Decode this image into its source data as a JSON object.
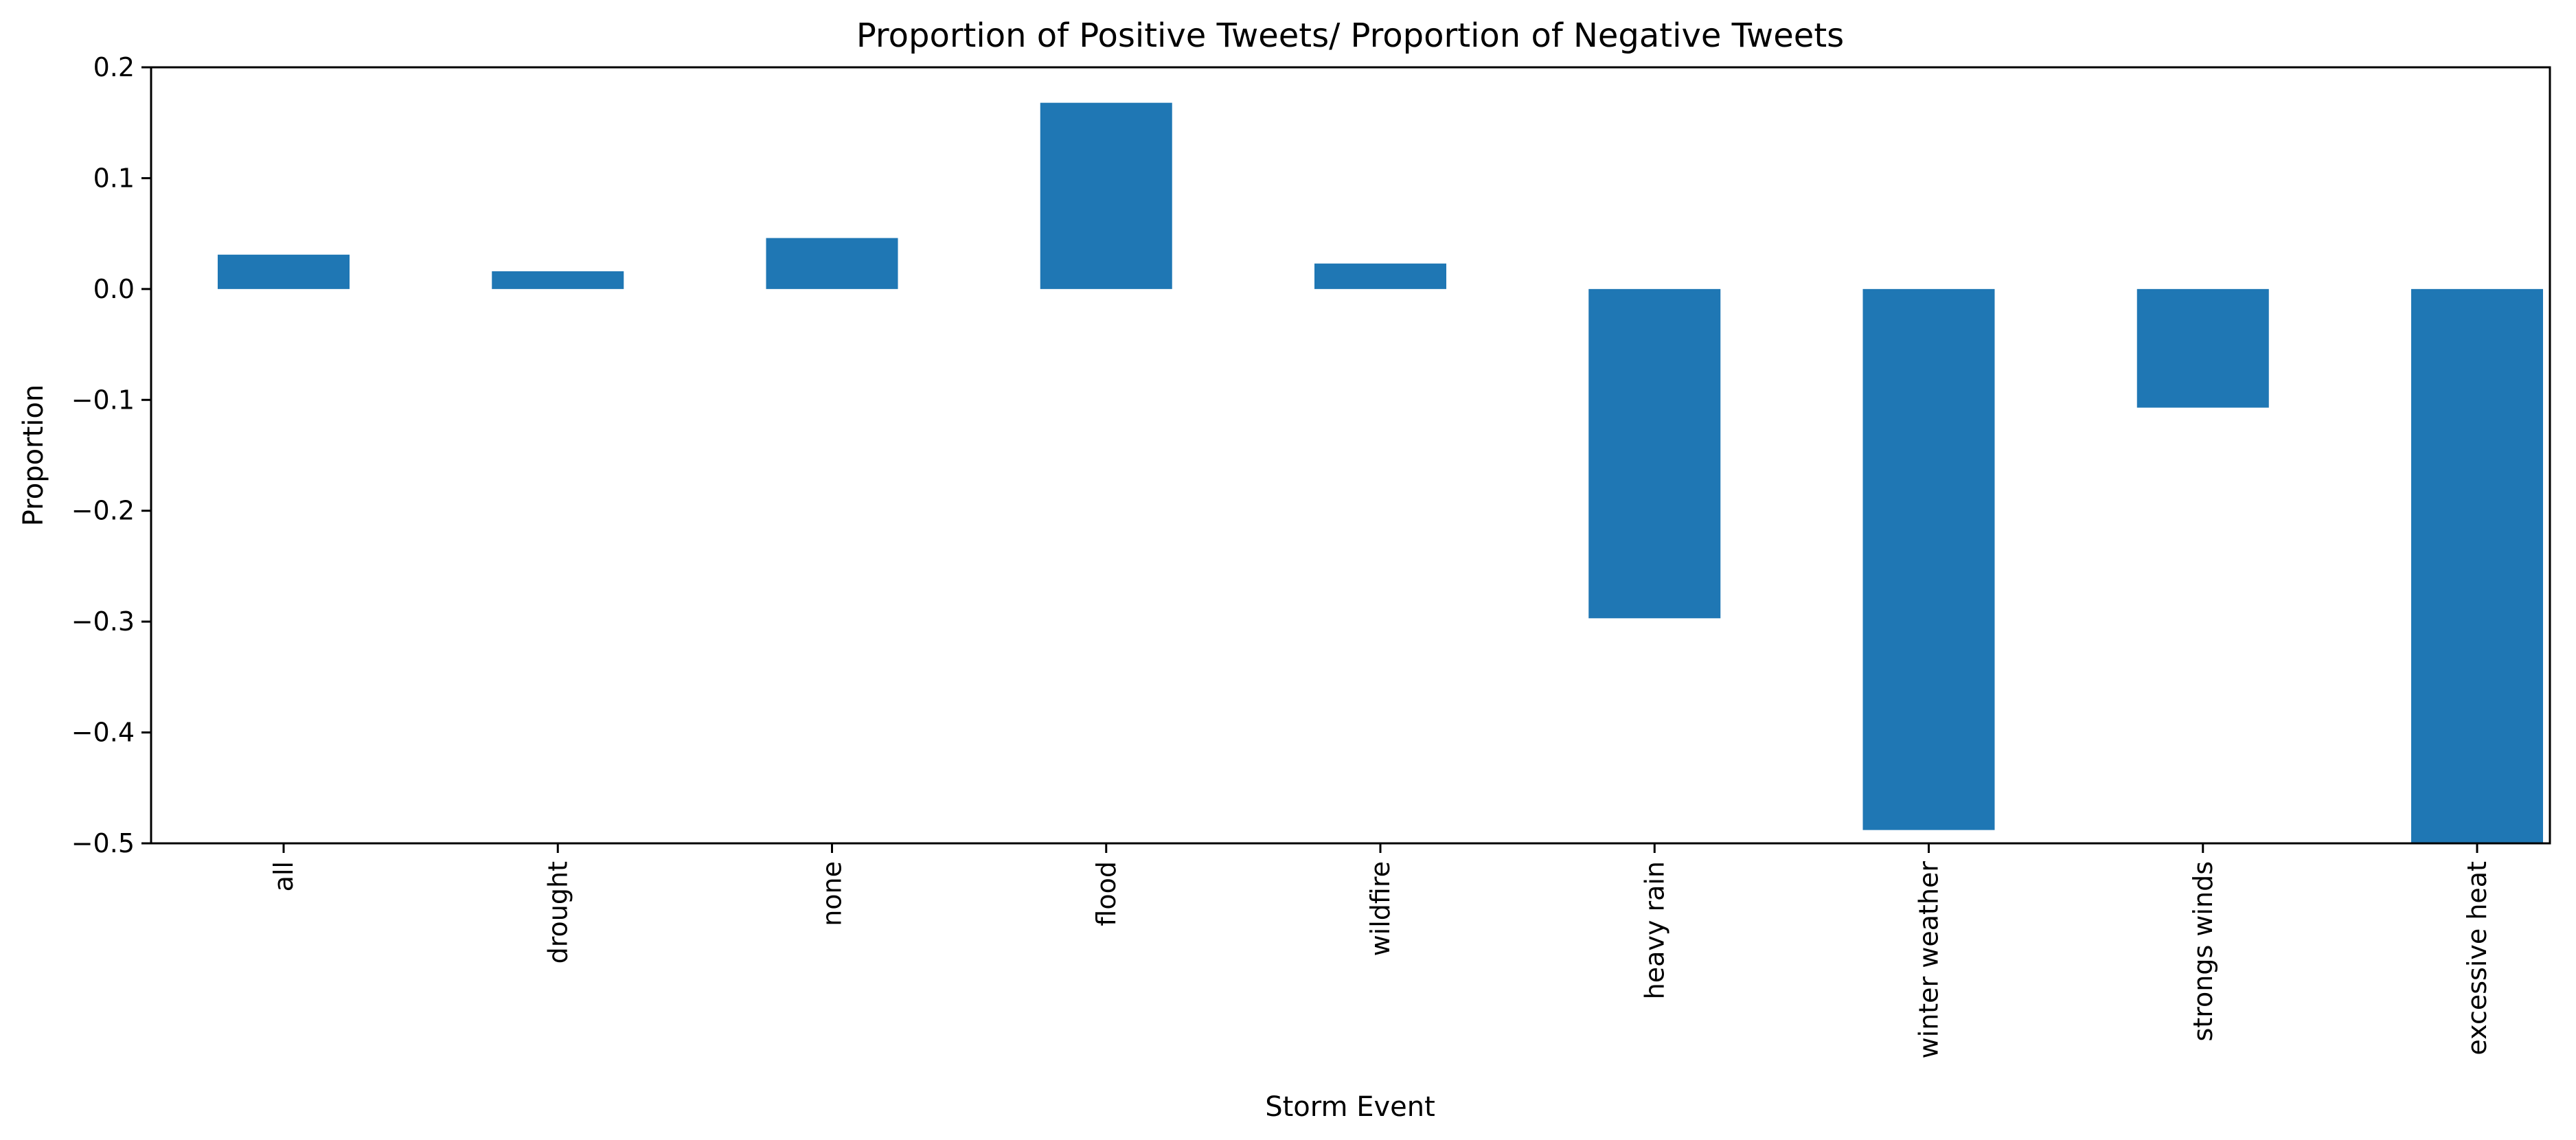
{
  "chart_data": {
    "type": "bar",
    "title": "Proportion of Positive Tweets/ Proportion of Negative Tweets",
    "xlabel": "Storm Event",
    "ylabel": "Proportion",
    "categories": [
      "all",
      "drought",
      "none",
      "flood",
      "wildfire",
      "heavy rain",
      "winter weather",
      "strongs winds",
      "excessive heat"
    ],
    "values": [
      0.031,
      0.016,
      0.046,
      0.168,
      0.023,
      -0.297,
      -0.488,
      -0.107,
      -0.5
    ],
    "ylim": [
      -0.5,
      0.2
    ],
    "yticks": [
      0.2,
      0.1,
      0.0,
      -0.1,
      -0.2,
      -0.3,
      -0.4,
      -0.5
    ],
    "ytick_labels": [
      "0.2",
      "0.1",
      "0.0",
      "−0.1",
      "−0.2",
      "−0.3",
      "−0.4",
      "−0.5"
    ],
    "bar_color": "#1f77b4",
    "grid": false,
    "legend": "none"
  }
}
